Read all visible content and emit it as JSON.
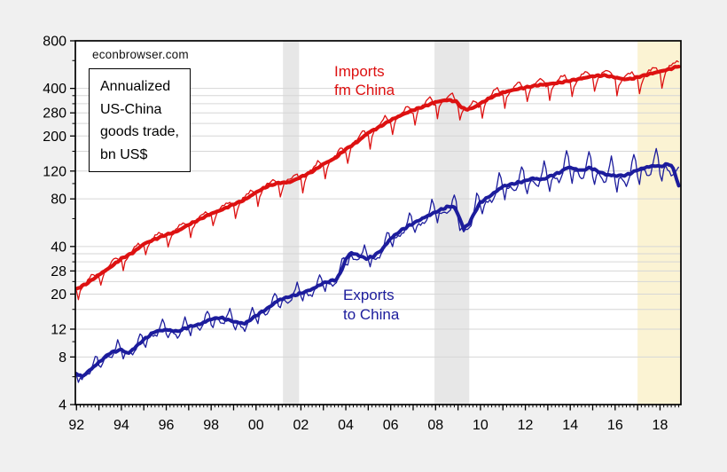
{
  "watermark": "econbrowser.com",
  "annotation_box": {
    "lines": [
      "Annualized",
      "US-China",
      "goods trade,",
      "bn US$"
    ]
  },
  "chart_data": {
    "type": "line",
    "title": "Annualized US-China goods trade, bn US$",
    "source_text": "econbrowser.com",
    "y_scale": "log",
    "y_unit": "bn US$",
    "y_min": 4,
    "y_max": 800,
    "y_labeled_ticks": [
      800,
      400,
      280,
      200,
      120,
      80,
      40,
      28,
      20,
      12,
      8,
      4
    ],
    "y_minor_ticks": [
      600,
      360,
      320,
      240,
      160,
      100,
      60,
      36,
      32,
      24,
      16,
      10,
      6
    ],
    "y_gridlines": [
      400,
      360,
      320,
      280,
      240,
      200,
      160,
      120,
      80,
      40,
      36,
      32,
      28,
      24,
      20,
      16,
      12,
      8
    ],
    "x_start": 1991.95,
    "x_end": 2018.93,
    "x_tick_years": [
      1992,
      1994,
      1996,
      1998,
      2000,
      2002,
      2004,
      2006,
      2008,
      2010,
      2012,
      2014,
      2016,
      2018
    ],
    "x_tick_labels": [
      "92",
      "94",
      "96",
      "98",
      "00",
      "02",
      "04",
      "06",
      "08",
      "10",
      "12",
      "14",
      "16",
      "18"
    ],
    "grid_color": "#d6d6d6",
    "background_color": "#f0f0f0",
    "plot_background": "#ffffff",
    "shaded_regions": [
      {
        "name": "recession-2001",
        "from": 2001.2,
        "to": 2001.92,
        "color": "#e7e7e7"
      },
      {
        "name": "recession-2008-09",
        "from": 2007.95,
        "to": 2009.5,
        "color": "#e7e7e7"
      },
      {
        "name": "period-from-2017",
        "from": 2017.0,
        "to": 2018.93,
        "color": "#fbf3d3"
      }
    ],
    "series": [
      {
        "id": "imports",
        "name": "Imports fm China",
        "label_line1": "Imports",
        "label_line2": "fm China",
        "color": "#dd1111",
        "thick_width": 4.2,
        "thin_width": 1.3,
        "anchors": [
          [
            1992.0,
            21.5
          ],
          [
            1992.5,
            23.5
          ],
          [
            1993.0,
            26.5
          ],
          [
            1993.5,
            29.5
          ],
          [
            1994.0,
            33.5
          ],
          [
            1994.5,
            36.5
          ],
          [
            1995.0,
            41.5
          ],
          [
            1995.5,
            44.5
          ],
          [
            1996.0,
            47.5
          ],
          [
            1996.5,
            50
          ],
          [
            1997.0,
            55
          ],
          [
            1997.5,
            59.5
          ],
          [
            1998.0,
            64.5
          ],
          [
            1998.5,
            68.5
          ],
          [
            1999.0,
            74
          ],
          [
            1999.5,
            79
          ],
          [
            2000.0,
            88
          ],
          [
            2000.5,
            96
          ],
          [
            2001.0,
            101
          ],
          [
            2001.5,
            102
          ],
          [
            2002.0,
            110
          ],
          [
            2002.5,
            119
          ],
          [
            2003.0,
            133
          ],
          [
            2003.5,
            144
          ],
          [
            2004.0,
            165
          ],
          [
            2004.5,
            183
          ],
          [
            2005.0,
            210
          ],
          [
            2005.5,
            228
          ],
          [
            2006.0,
            252
          ],
          [
            2006.5,
            272
          ],
          [
            2007.0,
            292
          ],
          [
            2007.5,
            308
          ],
          [
            2008.0,
            328
          ],
          [
            2008.5,
            338
          ],
          [
            2008.9,
            332
          ],
          [
            2009.2,
            300
          ],
          [
            2009.4,
            294
          ],
          [
            2009.7,
            302
          ],
          [
            2010.0,
            322
          ],
          [
            2010.5,
            352
          ],
          [
            2011.0,
            377
          ],
          [
            2011.5,
            392
          ],
          [
            2012.0,
            405
          ],
          [
            2012.5,
            418
          ],
          [
            2013.0,
            426
          ],
          [
            2013.5,
            434
          ],
          [
            2014.0,
            448
          ],
          [
            2014.5,
            462
          ],
          [
            2015.0,
            478
          ],
          [
            2015.5,
            484
          ],
          [
            2016.0,
            470
          ],
          [
            2016.4,
            456
          ],
          [
            2016.8,
            462
          ],
          [
            2017.0,
            472
          ],
          [
            2017.5,
            492
          ],
          [
            2018.0,
            512
          ],
          [
            2018.4,
            528
          ],
          [
            2018.88,
            556
          ]
        ],
        "seasonal_factors": [
          0.97,
          0.8,
          0.91,
          0.97,
          1.0,
          1.02,
          1.04,
          1.06,
          1.08,
          1.09,
          1.05,
          0.99
        ],
        "seasonal_ramp": [
          0.85,
          1.15
        ],
        "thin_noise_amp": 0.035,
        "thick_noise_amp": 0.012,
        "noise_seed": 1.3
      },
      {
        "id": "exports",
        "name": "Exports to China",
        "label_line1": "Exports",
        "label_line2": "to China",
        "color": "#1c1c9c",
        "thick_width": 4.0,
        "thin_width": 1.3,
        "anchors": [
          [
            1992.0,
            6.3
          ],
          [
            1992.25,
            6.0
          ],
          [
            1992.7,
            6.8
          ],
          [
            1993.0,
            7.4
          ],
          [
            1993.5,
            8.5
          ],
          [
            1994.0,
            8.9
          ],
          [
            1994.3,
            8.4
          ],
          [
            1995.0,
            10.3
          ],
          [
            1995.5,
            11.6
          ],
          [
            1996.0,
            11.9
          ],
          [
            1996.5,
            11.6
          ],
          [
            1997.0,
            12.4
          ],
          [
            1997.5,
            12.9
          ],
          [
            1998.0,
            13.9
          ],
          [
            1998.4,
            14.2
          ],
          [
            1999.0,
            13.4
          ],
          [
            1999.5,
            13.0
          ],
          [
            2000.0,
            14.6
          ],
          [
            2000.5,
            16.2
          ],
          [
            2001.0,
            18.3
          ],
          [
            2001.5,
            19.3
          ],
          [
            2002.0,
            20.2
          ],
          [
            2002.5,
            21.5
          ],
          [
            2003.0,
            23.5
          ],
          [
            2003.6,
            24.8
          ],
          [
            2003.8,
            28.0
          ],
          [
            2004.0,
            33.0
          ],
          [
            2004.2,
            36.5
          ],
          [
            2004.5,
            35.5
          ],
          [
            2004.9,
            33.5
          ],
          [
            2005.2,
            34.5
          ],
          [
            2005.6,
            38.0
          ],
          [
            2006.0,
            45.0
          ],
          [
            2006.5,
            51.0
          ],
          [
            2007.0,
            56.0
          ],
          [
            2007.5,
            61.0
          ],
          [
            2008.0,
            66.0
          ],
          [
            2008.5,
            71.0
          ],
          [
            2008.8,
            72.0
          ],
          [
            2009.0,
            64.0
          ],
          [
            2009.25,
            52.0
          ],
          [
            2009.5,
            56.0
          ],
          [
            2009.75,
            66.0
          ],
          [
            2010.0,
            76.0
          ],
          [
            2010.5,
            85.0
          ],
          [
            2011.0,
            96.0
          ],
          [
            2011.5,
            100.0
          ],
          [
            2012.0,
            104.0
          ],
          [
            2012.3,
            108.0
          ],
          [
            2012.8,
            106.0
          ],
          [
            2013.0,
            110.0
          ],
          [
            2013.5,
            117.0
          ],
          [
            2013.9,
            127.0
          ],
          [
            2014.2,
            124.0
          ],
          [
            2014.5,
            121.0
          ],
          [
            2014.9,
            126.0
          ],
          [
            2015.2,
            120.0
          ],
          [
            2015.6,
            114.0
          ],
          [
            2016.0,
            112.0
          ],
          [
            2016.5,
            113.0
          ],
          [
            2017.0,
            122.0
          ],
          [
            2017.4,
            127.0
          ],
          [
            2017.8,
            130.0
          ],
          [
            2018.0,
            128.0
          ],
          [
            2018.2,
            131.0
          ],
          [
            2018.4,
            133.0
          ],
          [
            2018.55,
            128.0
          ],
          [
            2018.7,
            112.0
          ],
          [
            2018.88,
            92.0
          ]
        ],
        "seasonal_factors": [
          0.94,
          0.85,
          0.96,
          0.97,
          0.95,
          0.93,
          0.91,
          0.93,
          0.99,
          1.1,
          1.22,
          1.12
        ],
        "seasonal_ramp": [
          0.55,
          1.35
        ],
        "thin_noise_amp": 0.045,
        "thick_noise_amp": 0.015,
        "noise_seed": 4.1
      }
    ]
  }
}
